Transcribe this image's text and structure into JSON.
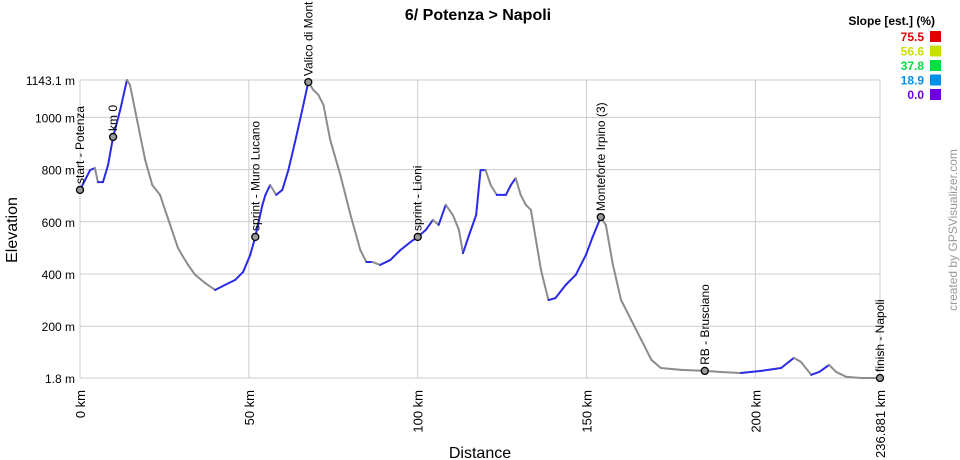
{
  "chart_data": {
    "type": "line",
    "title": "6/ Potenza > Napoli",
    "xlabel": "Distance",
    "ylabel": "Elevation",
    "xlim": [
      0,
      236.881
    ],
    "ylim": [
      1.8,
      1143.1
    ],
    "grid": true,
    "x_ticks": [
      "0 km",
      "50 km",
      "100 km",
      "150 km",
      "200 km",
      "236.881 km"
    ],
    "x_tick_values": [
      0,
      50,
      100,
      150,
      200,
      236.881
    ],
    "y_ticks": [
      "1.8 m",
      "200 m",
      "400 m",
      "600 m",
      "800 m",
      "1000 m",
      "1143.1 m"
    ],
    "y_tick_values": [
      1.8,
      200,
      400,
      600,
      800,
      1000,
      1143.1
    ],
    "series": [
      {
        "name": "elevation",
        "x": [
          0,
          1.5,
          3,
          4.4,
          5.3,
          6.8,
          8.3,
          9.8,
          11.9,
          13.9,
          14.8,
          16.3,
          17.8,
          19.3,
          21.4,
          23.7,
          25.2,
          26.7,
          29,
          30.2,
          32,
          34.1,
          37,
          40,
          42.9,
          45.9,
          48.3,
          50.4,
          51.9,
          54,
          54.9,
          56.3,
          58.1,
          59.9,
          61.7,
          63.8,
          65.8,
          67.6,
          69.1,
          70.6,
          72.1,
          74.1,
          77.1,
          80.1,
          83,
          84.8,
          86.6,
          88.9,
          91.9,
          94.9,
          97.9,
          100,
          102.4,
          104.5,
          106.2,
          108.3,
          110.4,
          112.2,
          113.4,
          115.2,
          117.3,
          118.6,
          120.1,
          121.6,
          123.4,
          126.1,
          127.6,
          129,
          130.5,
          132,
          133.5,
          135,
          136.5,
          138.7,
          140.8,
          143.8,
          146.8,
          149.8,
          151.8,
          154.2,
          155.7,
          157.8,
          160.2,
          163.2,
          166.2,
          169.2,
          172,
          178,
          185,
          189.8,
          195.7,
          201.7,
          207.6,
          211.4,
          213.5,
          216.5,
          218.9,
          221.8,
          223.9,
          226.9,
          231.4,
          236.881
        ],
        "y": [
          722,
          760,
          798,
          806,
          752,
          752,
          817,
          925,
          1028,
          1143,
          1124,
          1028,
          932,
          837,
          741,
          703,
          645,
          588,
          500,
          473,
          435,
          397,
          366,
          339,
          358,
          377,
          408,
          473,
          542,
          664,
          703,
          741,
          703,
          722,
          798,
          913,
          1028,
          1135,
          1105,
          1086,
          1047,
          913,
          779,
          626,
          492,
          446,
          446,
          435,
          454,
          492,
          523,
          542,
          569,
          607,
          588,
          665,
          626,
          569,
          480,
          549,
          626,
          798,
          798,
          741,
          703,
          703,
          741,
          767,
          703,
          665,
          646,
          531,
          416,
          300,
          308,
          358,
          397,
          473,
          542,
          618,
          588,
          435,
          301,
          224,
          148,
          71,
          40,
          33,
          29,
          25,
          21,
          29,
          40,
          79,
          63,
          14,
          25,
          52,
          25,
          6,
          2,
          1.8
        ]
      }
    ],
    "markers": [
      {
        "label": "start - Potenza",
        "km": 0,
        "ele": 722
      },
      {
        "label": "km 0",
        "km": 9.8,
        "ele": 925
      },
      {
        "label": "sprint - Muro Lucano",
        "km": 51.9,
        "ele": 542
      },
      {
        "label": "Valico di Mont",
        "km": 67.6,
        "ele": 1135
      },
      {
        "label": "sprint - Lioni",
        "km": 100,
        "ele": 542
      },
      {
        "label": "Monteforte Irpino (3)",
        "km": 154.2,
        "ele": 618
      },
      {
        "label": "RB - Brusciano",
        "km": 185,
        "ele": 29
      },
      {
        "label": "finish - Napoli",
        "km": 236.881,
        "ele": 1.8
      }
    ],
    "legend": {
      "title": "Slope [est.] (%)",
      "placement": "top-right",
      "entries": [
        {
          "label": "75.5",
          "color": "#e00000"
        },
        {
          "label": "56.6",
          "color": "#c8e000"
        },
        {
          "label": "37.8",
          "color": "#00e040"
        },
        {
          "label": "18.9",
          "color": "#0090e8"
        },
        {
          "label": "0.0",
          "color": "#7000e0"
        }
      ]
    },
    "colors": {
      "uphill": "#2a2ae8",
      "downhill": "#8c8c8c",
      "grid": "#cccccc"
    }
  },
  "credit": "created by GPSVisualizer.com"
}
